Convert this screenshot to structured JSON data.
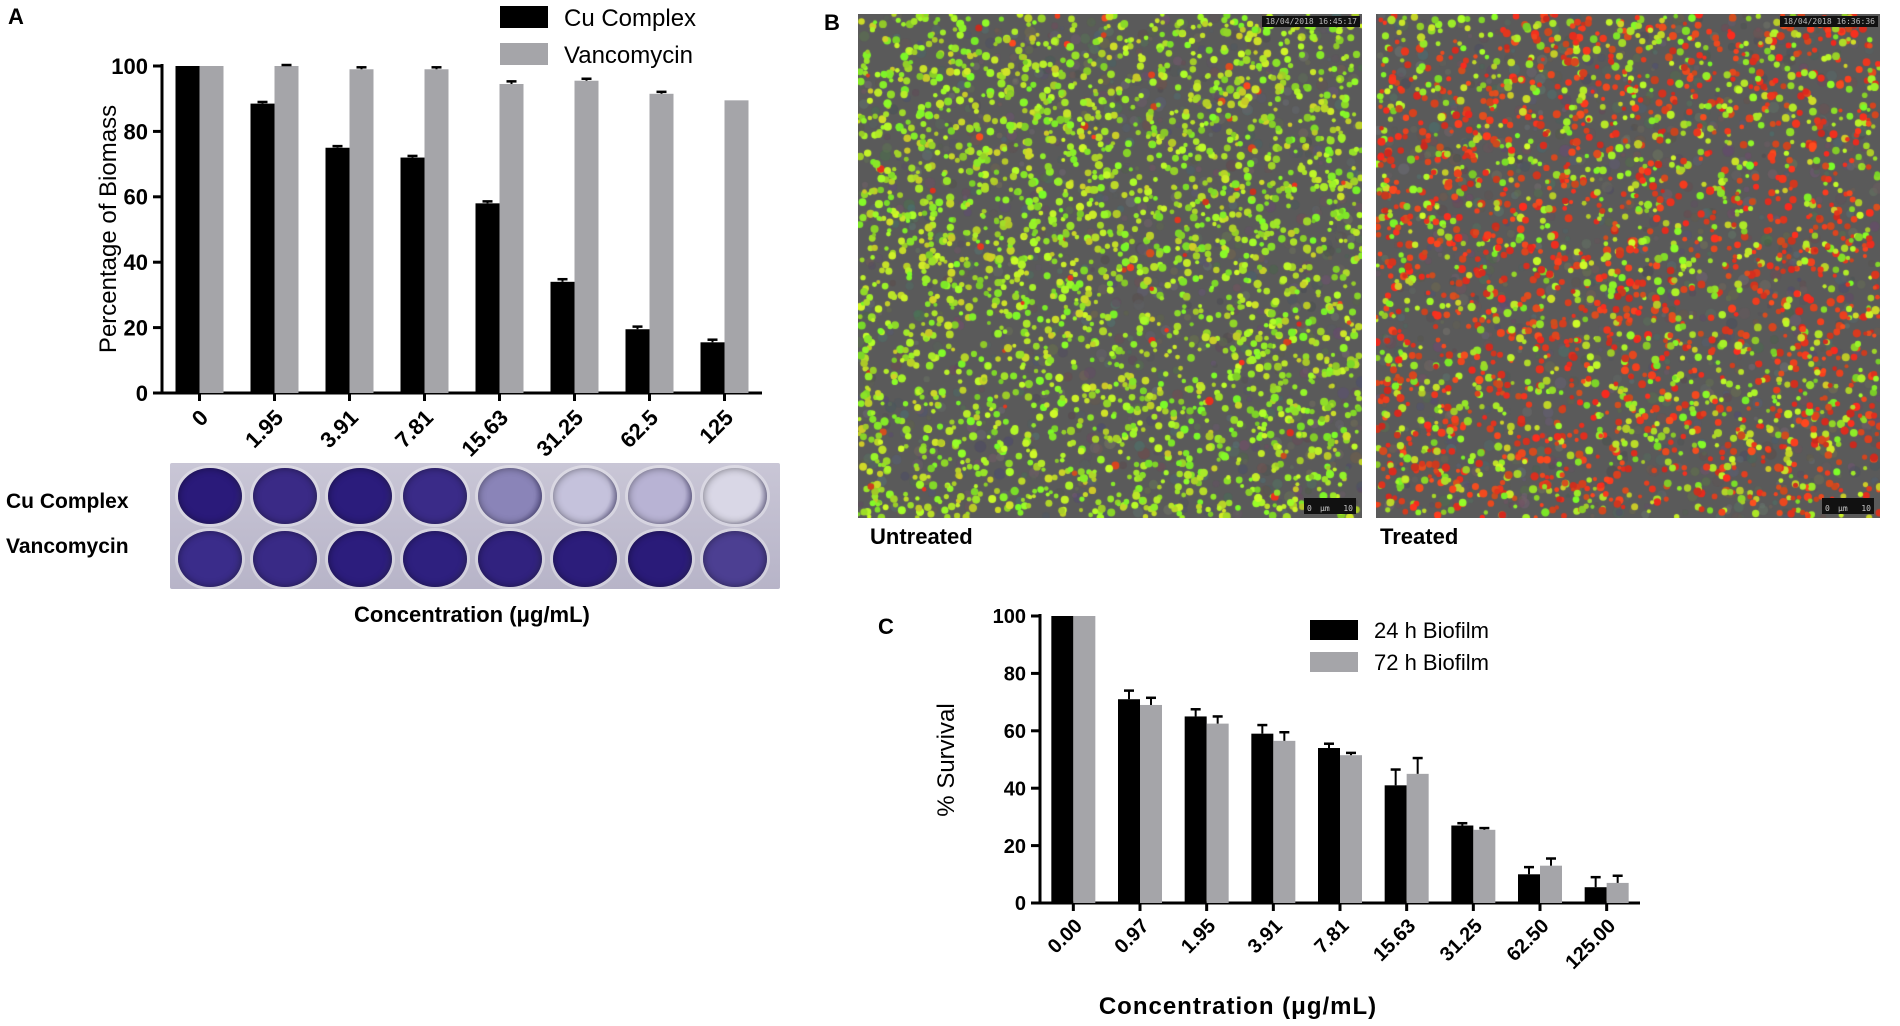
{
  "panels": {
    "a": "A",
    "b": "B",
    "c": "C"
  },
  "chart_data": [
    {
      "type": "bar",
      "categories": [
        "0",
        "1.95",
        "3.91",
        "7.81",
        "15.63",
        "31.25",
        "62.5",
        "125"
      ],
      "series": [
        {
          "name": "Cu Complex",
          "values": [
            100,
            88.5,
            75,
            72,
            58,
            34,
            19.5,
            15.5
          ],
          "errors": [
            0,
            0.5,
            0.5,
            0.5,
            0.6,
            0.8,
            0.8,
            0.8
          ],
          "color": "#000000"
        },
        {
          "name": "Vancomycin",
          "values": [
            100,
            100,
            99,
            99,
            94.5,
            95.5,
            91.5,
            89.5
          ],
          "errors": [
            0,
            0.3,
            0.6,
            0.6,
            0.8,
            0.6,
            0.6,
            0
          ],
          "color": "#a5a5a9"
        }
      ],
      "ylabel": "Percentage of Biomass",
      "xlabel": "Concentration (μg/mL)",
      "ylim": [
        0,
        100
      ],
      "yticks": [
        0,
        20,
        40,
        60,
        80,
        100
      ],
      "grid": false,
      "legend": "top-right"
    },
    {
      "type": "bar",
      "categories": [
        "0.00",
        "0.97",
        "1.95",
        "3.91",
        "7.81",
        "15.63",
        "31.25",
        "62.50",
        "125.00"
      ],
      "series": [
        {
          "name": "24 h Biofilm",
          "values": [
            100,
            71,
            65,
            59,
            54,
            41,
            27,
            10,
            5.5
          ],
          "errors": [
            0,
            3,
            2.5,
            3,
            1.5,
            5.5,
            0.8,
            2.5,
            3.5
          ],
          "color": "#000000"
        },
        {
          "name": "72 h Biofilm",
          "values": [
            100,
            69,
            62.5,
            56.5,
            51.5,
            45,
            25.5,
            13,
            7
          ],
          "errors": [
            0,
            2.5,
            2.5,
            3,
            0.8,
            5.5,
            0.6,
            2.5,
            2.5
          ],
          "color": "#a5a5a9"
        }
      ],
      "ylabel": "% Survival",
      "xlabel": "Concentration (μg/mL)",
      "ylim": [
        0,
        100
      ],
      "yticks": [
        0,
        20,
        40,
        60,
        80,
        100
      ],
      "grid": false,
      "legend": "top-right"
    }
  ],
  "plate": {
    "row_labels": [
      "Cu Complex",
      "Vancomycin"
    ],
    "well_colors": [
      [
        "#2a1a7a",
        "#3a2a86",
        "#2b1c7c",
        "#3a2b88",
        "#8a84b8",
        "#c5c2dc",
        "#b8b3d4",
        "#d9d7e6"
      ],
      [
        "#3a2c8a",
        "#392a86",
        "#2c1d7d",
        "#2e207f",
        "#31227f",
        "#2c1d7b",
        "#2a1b79",
        "#4c3f92"
      ]
    ]
  },
  "micrographs": [
    {
      "label": "Untreated",
      "timestamp": "18/04/2018 16:45:17",
      "scale_left": "0",
      "scale_unit": "μm",
      "scale_right": "10",
      "red_fraction": 0.02
    },
    {
      "label": "Treated",
      "timestamp": "18/04/2018 16:36:36",
      "scale_left": "0",
      "scale_unit": "μm",
      "scale_right": "10",
      "red_fraction": 0.55
    }
  ]
}
